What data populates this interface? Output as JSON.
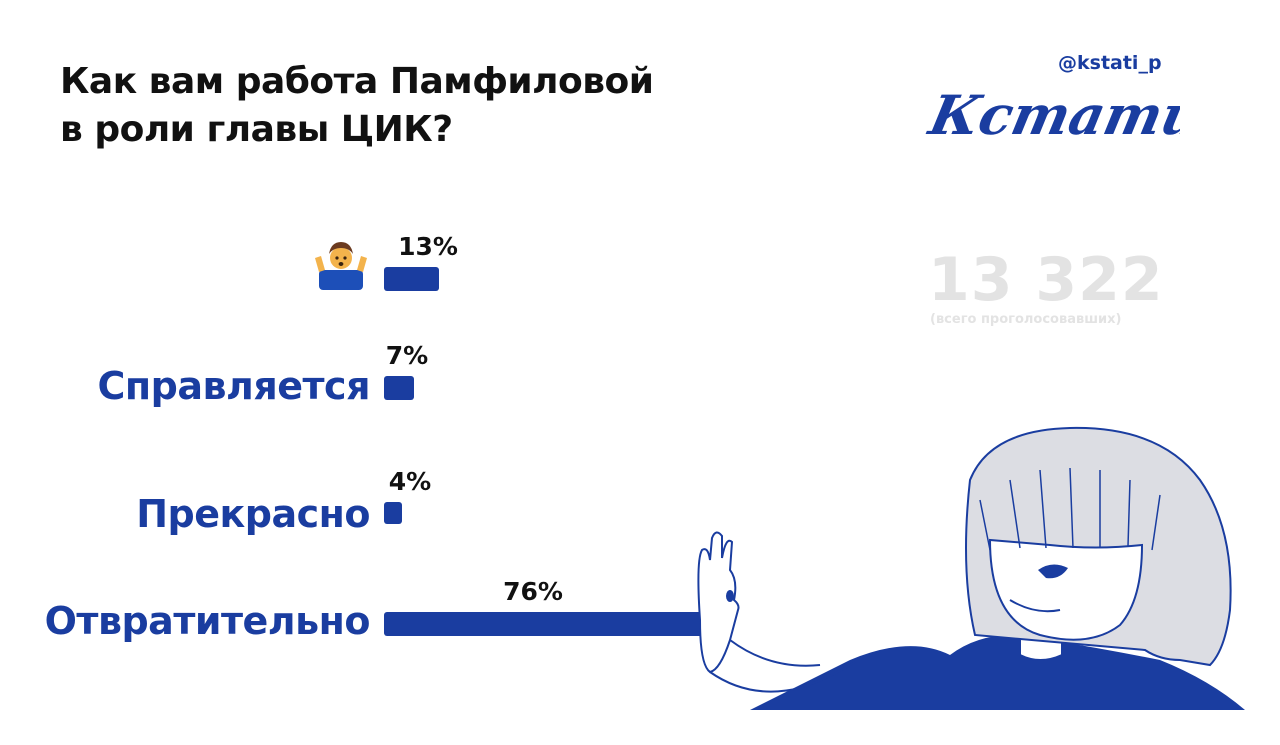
{
  "header": {
    "title_line1": "Как вам работа Памфиловой",
    "title_line2": "в роли главы ЦИК?"
  },
  "brand": {
    "handle": "@kstati_p",
    "logo_text": "Кстати,"
  },
  "totals": {
    "count": "13 322",
    "note": "(всего проголосовавших)"
  },
  "colors": {
    "accent": "#1a3da0",
    "muted": "#e3e3e3",
    "text": "#111111"
  },
  "chart_data": {
    "type": "bar",
    "orientation": "horizontal",
    "title": "Как вам работа Памфиловой в роли главы ЦИК?",
    "categories": [
      "shrug-emoji",
      "Справляется",
      "Прекрасно",
      "Отвратительно"
    ],
    "values": [
      13,
      7,
      4,
      76
    ],
    "value_labels": [
      "13%",
      "7%",
      "4%",
      "76%"
    ],
    "unit": "%",
    "grid": false,
    "legend": "none"
  }
}
